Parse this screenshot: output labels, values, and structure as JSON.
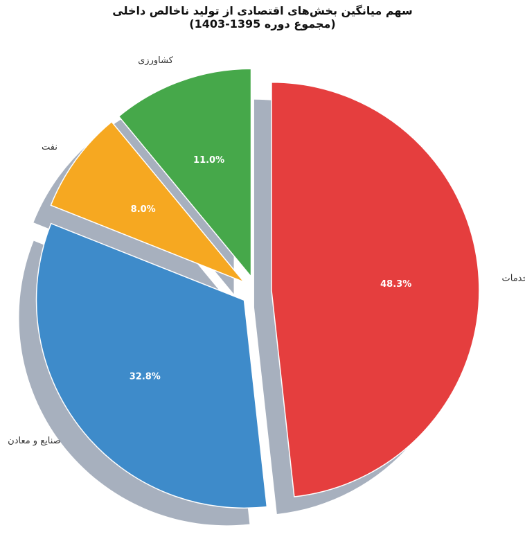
{
  "chart_data": {
    "type": "pie",
    "title": "سهم میانگین بخش‌های اقتصادی از تولید ناخالص داخلی",
    "subtitle": "(مجموع دوره 1395-1403)",
    "slices": [
      {
        "label": "خدمات",
        "value": 48.3,
        "pct_label": "48.3%",
        "color": "#e53e3e"
      },
      {
        "label": "صنایع و معادن",
        "value": 32.8,
        "pct_label": "32.8%",
        "color": "#3e8bca"
      },
      {
        "label": "نفت",
        "value": 8.0,
        "pct_label": "8.0%",
        "color": "#f6a821"
      },
      {
        "label": "کشاورزی",
        "value": 11.0,
        "pct_label": "11.0%",
        "color": "#46a84a"
      }
    ],
    "shadow": true,
    "exploded": true,
    "legend": "none"
  }
}
